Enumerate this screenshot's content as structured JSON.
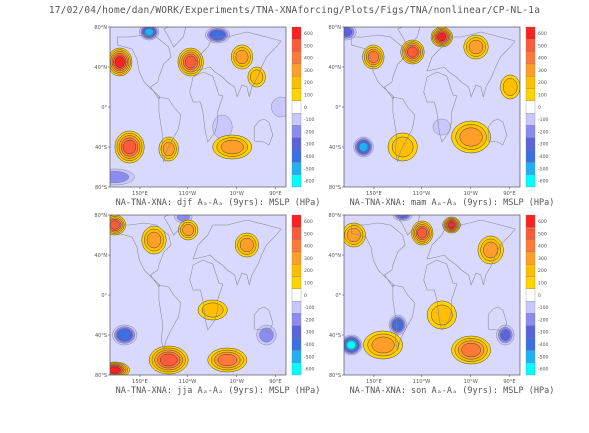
{
  "page_title": "17/02/04/home/dan/WORK/Experiments/TNA-XNAforcing/Plots/Figs/TNA/nonlinear/CP-NL-1a",
  "colors": {
    "neg_600": "#00ffff",
    "neg_500": "#1fb0f5",
    "neg_400": "#3a6fe6",
    "neg_300": "#5b63dc",
    "neg_200": "#8c8cf0",
    "neg_100": "#c8c8ff",
    "zero": "#ffffff",
    "pos_100": "#ffd400",
    "pos_200": "#ffbf00",
    "pos_300": "#ff9e28",
    "pos_400": "#ff7a38",
    "pos_500": "#ff5a3a",
    "pos_600": "#ff2020",
    "coast": "#888888"
  },
  "chart_data": [
    {
      "type": "heatmap",
      "title": "",
      "caption": "NA-TNA-XNA: djf Aₐ-Aₐ (9yrs): MSLP (HPa)",
      "xticks": [
        "150°E",
        "110°W",
        "10°W",
        "90°E"
      ],
      "yticks": [
        "80°N",
        "40°N",
        "0°",
        "40°S",
        "80°S"
      ],
      "colorbar": [
        600,
        500,
        400,
        300,
        200,
        100,
        0,
        -100,
        -200,
        -300,
        -400,
        -500,
        -600
      ],
      "season": "djf",
      "highs": [
        [
          -160,
          45,
          25,
          14,
          600
        ],
        [
          -15,
          45,
          26,
          14,
          500
        ],
        [
          90,
          50,
          22,
          12,
          300
        ],
        [
          -140,
          -40,
          30,
          16,
          500
        ],
        [
          -60,
          -42,
          20,
          12,
          300
        ],
        [
          70,
          -40,
          40,
          12,
          300
        ],
        [
          120,
          30,
          18,
          10,
          200
        ]
      ],
      "lows": [
        [
          -100,
          75,
          20,
          8,
          -500
        ],
        [
          40,
          72,
          25,
          8,
          -400
        ],
        [
          -170,
          -70,
          40,
          8,
          -200
        ],
        [
          50,
          -20,
          20,
          12,
          -100
        ],
        [
          170,
          0,
          20,
          10,
          -100
        ]
      ]
    },
    {
      "type": "heatmap",
      "title": "",
      "caption": "NA-TNA-XNA: mam Aₐ-Aₐ (9yrs): MSLP (HPa)",
      "xticks": [
        "150°E",
        "110°W",
        "10°W",
        "90°E"
      ],
      "yticks": [
        "80°N",
        "40°N",
        "0°",
        "40°S",
        "80°S"
      ],
      "colorbar": [
        600,
        500,
        400,
        300,
        200,
        100,
        0,
        -100,
        -200,
        -300,
        -400,
        -500,
        -600
      ],
      "season": "mam",
      "highs": [
        [
          -120,
          50,
          22,
          12,
          400
        ],
        [
          -40,
          55,
          24,
          12,
          500
        ],
        [
          20,
          70,
          22,
          10,
          600
        ],
        [
          90,
          60,
          25,
          12,
          300
        ],
        [
          -60,
          -40,
          30,
          14,
          200
        ],
        [
          80,
          -30,
          40,
          16,
          300
        ],
        [
          160,
          20,
          20,
          12,
          200
        ]
      ],
      "lows": [
        [
          -140,
          -40,
          20,
          10,
          -500
        ],
        [
          -175,
          75,
          20,
          8,
          -300
        ],
        [
          20,
          -20,
          18,
          8,
          -100
        ]
      ]
    },
    {
      "type": "heatmap",
      "title": "",
      "caption": "NA-TNA-XNA: jja Aₐ-Aₐ (9yrs): MSLP (HPa)",
      "xticks": [
        "150°E",
        "110°W",
        "10°W",
        "90°E"
      ],
      "yticks": [
        "80°N",
        "40°N",
        "0°",
        "40°S",
        "80°S"
      ],
      "colorbar": [
        600,
        500,
        400,
        300,
        200,
        100,
        0,
        -100,
        -200,
        -300,
        -400,
        -500,
        -600
      ],
      "season": "jja",
      "highs": [
        [
          -170,
          70,
          22,
          10,
          500
        ],
        [
          -90,
          55,
          25,
          14,
          300
        ],
        [
          -20,
          65,
          20,
          10,
          300
        ],
        [
          100,
          50,
          24,
          12,
          300
        ],
        [
          -170,
          -75,
          30,
          8,
          600
        ],
        [
          -60,
          -65,
          40,
          14,
          500
        ],
        [
          60,
          -65,
          40,
          12,
          400
        ],
        [
          30,
          -15,
          30,
          10,
          200
        ]
      ],
      "lows": [
        [
          -150,
          -40,
          25,
          10,
          -400
        ],
        [
          -30,
          78,
          18,
          6,
          -200
        ],
        [
          140,
          -40,
          20,
          10,
          -200
        ]
      ]
    },
    {
      "type": "heatmap",
      "title": "",
      "caption": "NA-TNA-XNA: son Aₐ-Aₐ (9yrs): MSLP (HPa)",
      "xticks": [
        "150°E",
        "110°W",
        "10°W",
        "90°E"
      ],
      "yticks": [
        "80°N",
        "40°N",
        "0°",
        "40°S",
        "80°S"
      ],
      "colorbar": [
        600,
        500,
        400,
        300,
        200,
        100,
        0,
        -100,
        -200,
        -300,
        -400,
        -500,
        -600
      ],
      "season": "son",
      "highs": [
        [
          -160,
          60,
          24,
          12,
          300
        ],
        [
          -20,
          62,
          22,
          12,
          500
        ],
        [
          40,
          70,
          18,
          8,
          600
        ],
        [
          120,
          45,
          26,
          14,
          300
        ],
        [
          -100,
          -50,
          40,
          14,
          300
        ],
        [
          80,
          -55,
          40,
          14,
          400
        ],
        [
          20,
          -20,
          30,
          14,
          200
        ]
      ],
      "lows": [
        [
          -165,
          -50,
          22,
          10,
          -600
        ],
        [
          -70,
          -30,
          18,
          10,
          -400
        ],
        [
          150,
          -40,
          18,
          10,
          -300
        ],
        [
          -60,
          80,
          20,
          6,
          -300
        ]
      ]
    }
  ]
}
